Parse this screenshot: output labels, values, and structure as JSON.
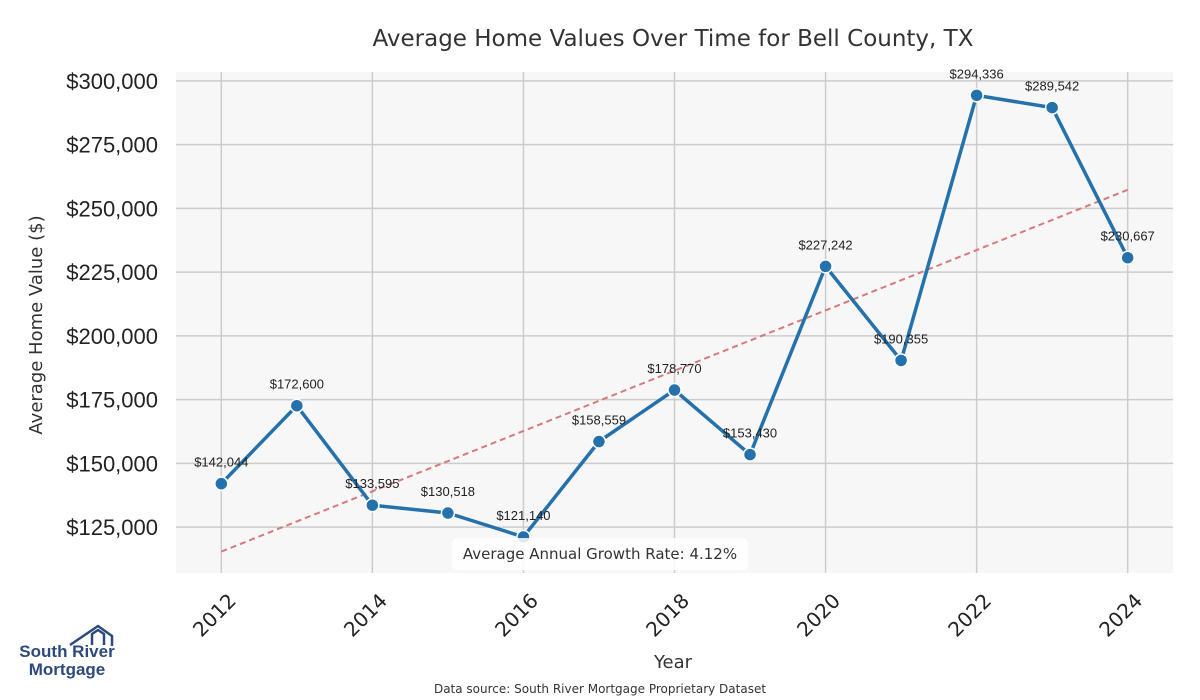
{
  "chart_data": {
    "type": "line",
    "title": "Average Home Values Over Time for Bell County, TX",
    "xlabel": "Year",
    "ylabel": "Average Home Value ($)",
    "x": [
      2012,
      2013,
      2014,
      2015,
      2016,
      2017,
      2018,
      2019,
      2020,
      2021,
      2022,
      2023,
      2024
    ],
    "values": [
      142044,
      172600,
      133595,
      130518,
      121140,
      158559,
      178770,
      153430,
      227242,
      190355,
      294336,
      289542,
      230667
    ],
    "value_labels": [
      "$142,044",
      "$172,600",
      "$133,595",
      "$130,518",
      "$121,140",
      "$158,559",
      "$178,770",
      "$153,430",
      "$227,242",
      "$190,355",
      "$294,336",
      "$289,542",
      "$230,667"
    ],
    "xticks": [
      "2012",
      "2014",
      "2016",
      "2018",
      "2020",
      "2022",
      "2024"
    ],
    "yticks": [
      125000,
      150000,
      175000,
      200000,
      225000,
      250000,
      275000,
      300000
    ],
    "ytick_labels": [
      "$125,000",
      "$150,000",
      "$175,000",
      "$200,000",
      "$225,000",
      "$250,000",
      "$275,000",
      "$300,000"
    ],
    "xlim": [
      2011.4,
      2024.6
    ],
    "ylim": [
      107000,
      303500
    ],
    "grid": true,
    "trendline": {
      "start": [
        2012,
        115400
      ],
      "end": [
        2024,
        257300
      ],
      "color": "#d67a7a",
      "style": "dashed"
    },
    "annotation": "Average Annual Growth Rate: 4.12%",
    "series_color": "#2471ab",
    "background_color": "#f7f7f7",
    "grid_color": "#cccccc"
  },
  "footer": {
    "source": "Data source: South River Mortgage Proprietary Dataset"
  },
  "logo": {
    "line1": "South River",
    "line2": "Mortgage"
  }
}
